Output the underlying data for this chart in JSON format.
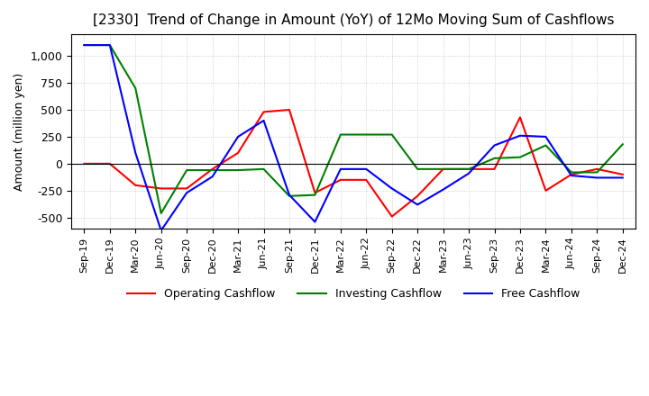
{
  "title": "[2330]  Trend of Change in Amount (YoY) of 12Mo Moving Sum of Cashflows",
  "ylabel": "Amount (million yen)",
  "x_labels": [
    "Sep-19",
    "Dec-19",
    "Mar-20",
    "Jun-20",
    "Sep-20",
    "Dec-20",
    "Mar-21",
    "Jun-21",
    "Sep-21",
    "Dec-21",
    "Mar-22",
    "Jun-22",
    "Sep-22",
    "Dec-22",
    "Mar-23",
    "Jun-23",
    "Sep-23",
    "Dec-23",
    "Mar-24",
    "Jun-24",
    "Sep-24",
    "Dec-24"
  ],
  "operating": [
    0,
    0,
    -200,
    -230,
    -230,
    -50,
    100,
    480,
    500,
    -270,
    -150,
    -150,
    -490,
    -300,
    -50,
    -50,
    -50,
    430,
    -250,
    -100,
    -50,
    -100
  ],
  "investing": [
    1100,
    1100,
    700,
    -460,
    -60,
    -60,
    -60,
    -50,
    -300,
    -290,
    270,
    270,
    270,
    -50,
    -50,
    -50,
    50,
    60,
    170,
    -80,
    -80,
    180
  ],
  "free": [
    1100,
    1100,
    100,
    -620,
    -270,
    -120,
    250,
    400,
    -290,
    -540,
    -50,
    -50,
    -230,
    -380,
    -240,
    -90,
    170,
    260,
    250,
    -110,
    -130,
    -130
  ],
  "operating_color": "#ff0000",
  "investing_color": "#008000",
  "free_color": "#0000ff",
  "ylim": [
    -600,
    1200
  ],
  "yticks": [
    -500,
    -250,
    0,
    250,
    500,
    750,
    1000
  ],
  "background_color": "#ffffff",
  "grid_color": "#cccccc",
  "title_fontsize": 11,
  "legend_labels": [
    "Operating Cashflow",
    "Investing Cashflow",
    "Free Cashflow"
  ]
}
